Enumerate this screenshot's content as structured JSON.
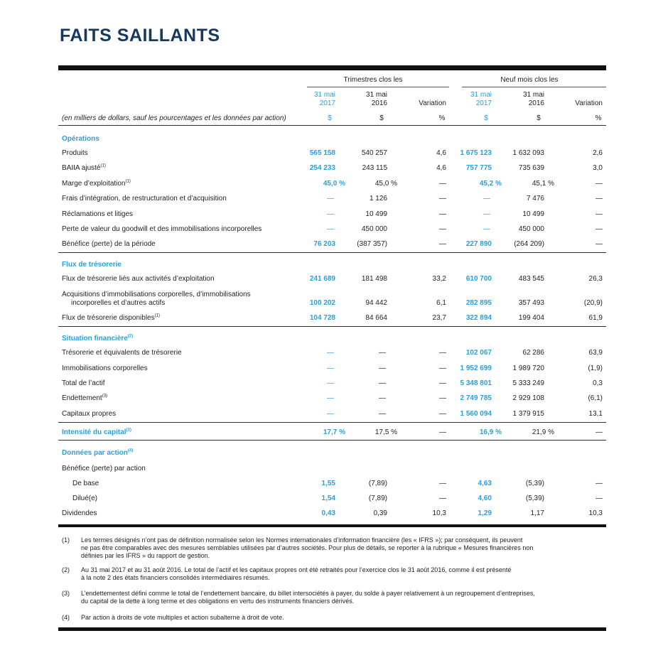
{
  "title": "FAITS SAILLANTS",
  "header": {
    "group1": "Trimestres clos les",
    "group2": "Neuf mois clos les",
    "col1": [
      "31 mai",
      "2017",
      "$"
    ],
    "col2": [
      "31 mai",
      "2016",
      "$"
    ],
    "col3": [
      "Variation",
      "%"
    ],
    "col4": [
      "31 mai",
      "2017",
      "$"
    ],
    "col5": [
      "31 mai",
      "2016",
      "$"
    ],
    "col6": [
      "Variation",
      "%"
    ],
    "note": "(en milliers de dollars, sauf les pourcentages et les données par action)"
  },
  "sections": {
    "operations": "Opérations",
    "flux": "Flux de trésorerie",
    "situation": "Situation financière",
    "intensite": "Intensité du capital",
    "donnees": "Données par action"
  },
  "rows": [
    {
      "label": "Produits",
      "sup": "",
      "v": [
        "565 158",
        "540 257",
        "4,6",
        "1 675 123",
        "1 632 093",
        "2,6"
      ]
    },
    {
      "label": "BAIIA ajusté",
      "sup": "(1)",
      "v": [
        "254 233",
        "243 115",
        "4,6",
        "757 775",
        "735 639",
        "3,0"
      ]
    },
    {
      "label": "Marge d’exploitation",
      "sup": "(1)",
      "v": [
        "45,0 %",
        "45,0 %",
        "—",
        "45,2 %",
        "45,1 %",
        "—"
      ]
    },
    {
      "label": "Frais d’intégration, de restructuration et d’acquisition",
      "sup": "",
      "v": [
        "—",
        "1 126",
        "—",
        "—",
        "7 476",
        "—"
      ]
    },
    {
      "label": "Réclamations et litiges",
      "sup": "",
      "v": [
        "—",
        "10 499",
        "—",
        "—",
        "10 499",
        "—"
      ]
    },
    {
      "label": "Perte de valeur du goodwill et des immobilisations incorporelles",
      "sup": "",
      "v": [
        "—",
        "450 000",
        "—",
        "—",
        "450 000",
        "—"
      ]
    },
    {
      "label": "Bénéfice (perte) de la période",
      "sup": "",
      "v": [
        "76 203",
        "(387 357)",
        "—",
        "227 890",
        "(264 209)",
        "—"
      ]
    },
    {
      "label": "Flux de trésorerie liés aux activités d’exploitation",
      "sup": "",
      "v": [
        "241 689",
        "181 498",
        "33,2",
        "610 700",
        "483 545",
        "26,3"
      ]
    },
    {
      "label": "Acquisitions d’immobilisations corporelles, d’immobilisations",
      "label2": "incorporelles et d’autres actifs",
      "sup": "",
      "v": [
        "100 202",
        "94 442",
        "6,1",
        "282 895",
        "357 493",
        "(20,9)"
      ]
    },
    {
      "label": "Flux de trésorerie disponibles",
      "sup": "(1)",
      "v": [
        "104 728",
        "84 664",
        "23,7",
        "322 894",
        "199 404",
        "61,9"
      ]
    },
    {
      "label": "Trésorerie et équivalents de trésorerie",
      "sup": "",
      "v": [
        "—",
        "—",
        "—",
        "102 067",
        "62 286",
        "63,9"
      ]
    },
    {
      "label": "Immobilisations corporelles",
      "sup": "",
      "v": [
        "—",
        "—",
        "—",
        "1 952 699",
        "1 989 720",
        "(1,9)"
      ]
    },
    {
      "label": "Total de l’actif",
      "sup": "",
      "v": [
        "—",
        "—",
        "—",
        "5 348 801",
        "5 333 249",
        "0,3"
      ]
    },
    {
      "label": "Endettement",
      "sup": "(3)",
      "v": [
        "—",
        "—",
        "—",
        "2 749 785",
        "2 929 108",
        "(6,1)"
      ]
    },
    {
      "label": "Capitaux propres",
      "sup": "",
      "v": [
        "—",
        "—",
        "—",
        "1 560 094",
        "1 379 915",
        "13,1"
      ]
    },
    {
      "label": "",
      "sup": "",
      "v": [
        "17,7 %",
        "17,5 %",
        "—",
        "16,9 %",
        "21,9 %",
        "—"
      ]
    },
    {
      "label": "Bénéfice (perte) par action",
      "sup": "",
      "v": [
        "",
        "",
        "",
        "",
        "",
        ""
      ]
    },
    {
      "label": "De base",
      "sup": "",
      "v": [
        "1,55",
        "(7,89)",
        "—",
        "4,63",
        "(5,39)",
        "—"
      ]
    },
    {
      "label": "Dilué(e)",
      "sup": "",
      "v": [
        "1,54",
        "(7,89)",
        "—",
        "4,60",
        "(5,39)",
        "—"
      ]
    },
    {
      "label": "Dividendes",
      "sup": "",
      "v": [
        "0,43",
        "0,39",
        "10,3",
        "1,29",
        "1,17",
        "10,3"
      ]
    }
  ],
  "footnotes": [
    {
      "num": "(1)",
      "lines": [
        "Les termes désignés n’ont pas de définition normalisée selon les Normes internationales d’information financière (les « IFRS »); par conséquent, ils peuvent",
        "ne pas être comparables avec des mesures semblables utilisées par d’autres sociétés. Pour plus de détails, se reporter à la rubrique « Mesures financières non",
        "définies par les IFRS » du rapport de gestion."
      ]
    },
    {
      "num": "(2)",
      "lines": [
        "Au 31 mai 2017 et au 31 août 2016. Le total de l’actif et les capitaux propres ont été retraités pour l’exercice clos le 31 août 2016, comme il est présenté",
        "à la note 2 des états financiers consolidés intermédiaires résumés."
      ]
    },
    {
      "num": "(3)",
      "lines": [
        "L’endettementest défini comme le total de l’endettement bancaire, du billet intersociétés à payer, du solde à payer relativement à un regroupement d’entreprises,",
        "du capital de la dette à long terme et des obligations en vertu des instruments financiers dérivés."
      ]
    },
    {
      "num": "(4)",
      "lines": [
        "Par action à droits de vote multiples et action subalterne à droit de vote."
      ]
    }
  ],
  "colors": {
    "title": "#17385f",
    "accent": "#2a9fd8"
  }
}
